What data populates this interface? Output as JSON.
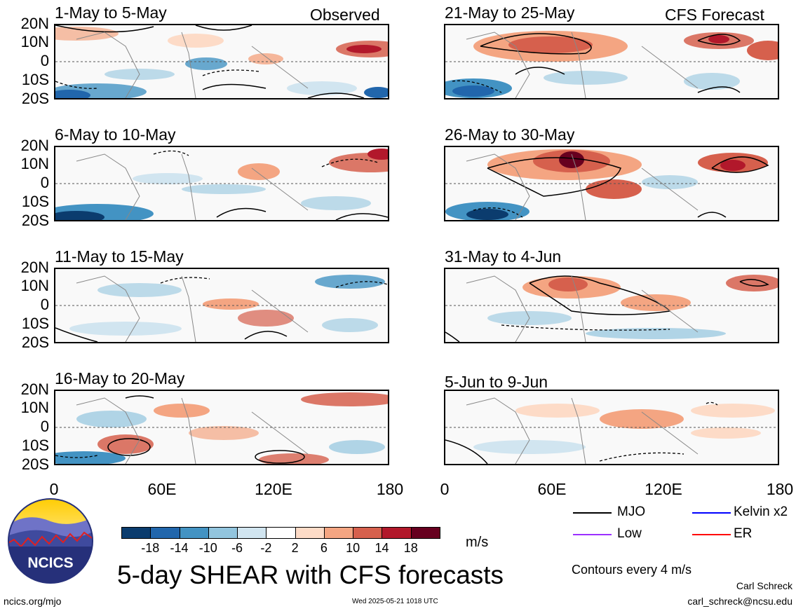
{
  "panels_left": [
    {
      "title": "1-May to 5-May",
      "corner": "Observed"
    },
    {
      "title": "6-May to 10-May",
      "corner": ""
    },
    {
      "title": "11-May to 15-May",
      "corner": ""
    },
    {
      "title": "16-May to 20-May",
      "corner": ""
    }
  ],
  "panels_right": [
    {
      "title": "21-May to 25-May",
      "corner": "CFS Forecast"
    },
    {
      "title": "26-May to 30-May",
      "corner": ""
    },
    {
      "title": "31-May to 4-Jun",
      "corner": ""
    },
    {
      "title": "5-Jun to 9-Jun",
      "corner": ""
    }
  ],
  "lat_labels": [
    "20N",
    "10N",
    "0",
    "10S",
    "20S"
  ],
  "lon_labels": [
    "0",
    "60E",
    "120E",
    "180"
  ],
  "colorbar": {
    "colors": [
      "#0b3c6e",
      "#2166ac",
      "#4393c3",
      "#92c5de",
      "#d1e5f0",
      "#ffffff",
      "#fddbc7",
      "#f4a582",
      "#d6604d",
      "#b2182b",
      "#67001f"
    ],
    "labels": [
      "-18",
      "-14",
      "-10",
      "-6",
      "-2",
      "2",
      "6",
      "10",
      "14",
      "18"
    ],
    "unit": "m/s"
  },
  "legend": {
    "items": [
      {
        "label": "MJO",
        "color": "#000000"
      },
      {
        "label": "Kelvin x2",
        "color": "#0000ff"
      },
      {
        "label": "Low",
        "color": "#9b30ff"
      },
      {
        "label": "ER",
        "color": "#ff0000"
      }
    ],
    "contour_note": "Contours every 4 m/s"
  },
  "title": "5-day SHEAR with CFS forecasts",
  "footer": {
    "site": "ncics.org/mjo",
    "timestamp": "Wed 2025-05-21 1018 UTC",
    "author": "Carl Schreck",
    "email": "carl_schreck@ncsu.edu"
  },
  "logo_text": "NCICS"
}
